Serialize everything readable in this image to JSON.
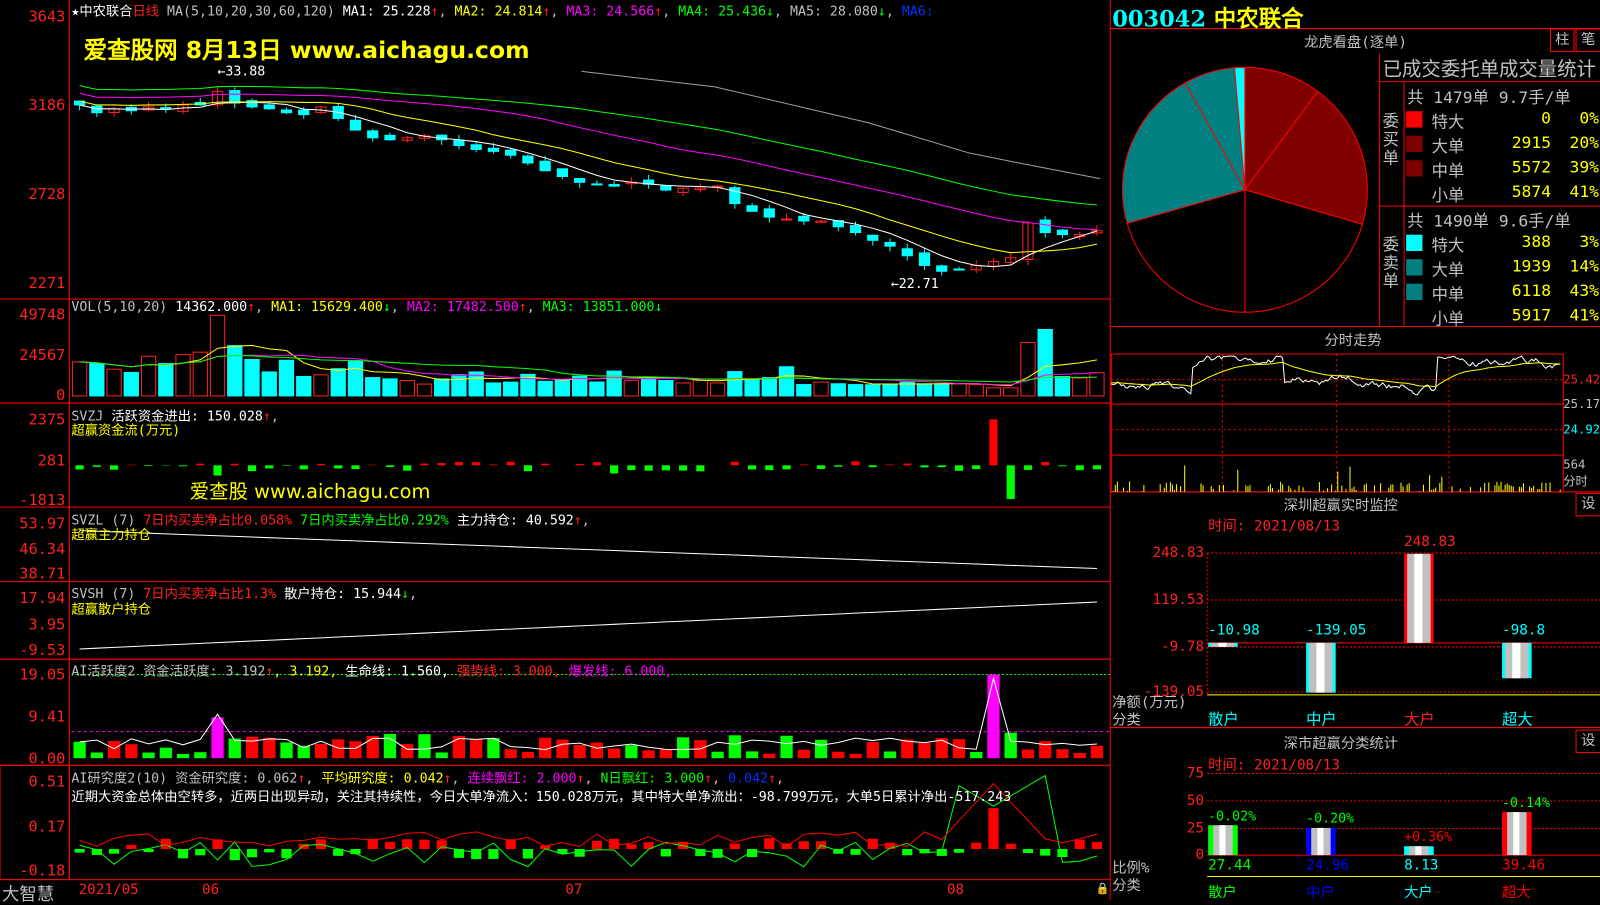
{
  "header": {
    "star": "★",
    "stock_name": "中农联合",
    "period": "日线",
    "ma_label": "MA(5,10,20,30,60,120)",
    "ma1": "MA1: 25.228",
    "ma2": "MA2: 24.814",
    "ma3": "MA3: 24.566",
    "ma4": "MA4: 25.436",
    "ma5": "MA5: 28.080",
    "ma6": "MA6:",
    "up": "↑",
    "down": "↓",
    "comma": ","
  },
  "watermark": {
    "line1": "爱查股网    8月13日    www.aichagu.com",
    "line2": "爱查股 www.aichagu.com"
  },
  "main_chart": {
    "y_ticks": [
      "3643",
      "3186",
      "2728",
      "2271"
    ],
    "high_label": "←33.88",
    "low_label": "←22.71",
    "closes": [
      3190,
      3150,
      3170,
      3160,
      3180,
      3170,
      3190,
      3190,
      3260,
      3200,
      3180,
      3170,
      3150,
      3140,
      3180,
      3120,
      3060,
      3020,
      3010,
      3020,
      3030,
      3010,
      2980,
      2960,
      2950,
      2930,
      2890,
      2850,
      2820,
      2790,
      2780,
      2770,
      2790,
      2780,
      2750,
      2760,
      2760,
      2770,
      2680,
      2640,
      2610,
      2600,
      2590,
      2590,
      2560,
      2530,
      2490,
      2460,
      2410,
      2360,
      2330,
      2340,
      2360,
      2380,
      2400,
      2580,
      2530,
      2520,
      2520,
      2540
    ],
    "colors": {
      "up": "#ff2020",
      "down": "#00ffff",
      "ma1": "#ffffff",
      "ma2": "#ffff00",
      "ma3": "#ff00ff",
      "ma4": "#00ff00",
      "ma5": "#a0a0a0"
    }
  },
  "volume": {
    "title": "VOL(5,10,20)",
    "value": "14362.000",
    "ma1": "MA1: 15629.400",
    "ma2": "MA2: 17482.500",
    "ma3": "MA3: 13851.000",
    "y_ticks": [
      "49748",
      "24567",
      "0"
    ],
    "values": [
      21000,
      20000,
      16500,
      14500,
      24500,
      20000,
      25500,
      27000,
      49748,
      31000,
      22500,
      14800,
      22000,
      12000,
      13000,
      16800,
      21500,
      11300,
      10500,
      9500,
      7300,
      10500,
      13000,
      14800,
      8000,
      8500,
      13300,
      9000,
      10000,
      12200,
      8600,
      15300,
      9600,
      11700,
      9500,
      8000,
      9600,
      8000,
      15000,
      10000,
      11300,
      18000,
      7000,
      8500,
      7500,
      7000,
      6900,
      7000,
      8500,
      7500,
      7500,
      7500,
      7000,
      5000,
      5000,
      33000,
      41000,
      12000,
      11000,
      14362
    ]
  },
  "svzj": {
    "title": "SVZJ",
    "label": "活跃资金进出: 150.028",
    "sub": "超赢资金流(万元)",
    "y_ticks": [
      "2375",
      "281",
      "-1813"
    ]
  },
  "svzl": {
    "title": "SVZL (7)",
    "ratio_red": "7日内买卖净占比0.058%",
    "ratio_green": "7日内买卖净占比0.292%",
    "hold": "主力持仓: 40.592",
    "sub": "超赢主力持仓",
    "y_ticks": [
      "53.97",
      "46.34",
      "38.71"
    ]
  },
  "svsh": {
    "title": "SVSH (7)",
    "ratio_red": "7日内买卖净占比1.3%",
    "hold": "散户持仓: 15.944",
    "sub": "超赢散户持仓",
    "y_ticks": [
      "17.94",
      "3.95",
      "-9.53"
    ]
  },
  "ai_active": {
    "title": "AI活跃度2 资金活跃度: 3.192",
    "v2": ", 3.192,",
    "life": "生命线: 1.560,",
    "strong": "强势线: 3.000,",
    "burst": "爆发线: 6.000,",
    "y_ticks": [
      "19.05",
      "9.41",
      "0.00"
    ]
  },
  "ai_research": {
    "title": "AI研究度2(10) 资金研究度: 0.062",
    "avg": "平均研究度: 0.042",
    "red_cont": "连续飘红: 2.000",
    "n_red": "N日飘红: 3.000",
    "v5": "0.042",
    "comment": "近期大资金总体由空转多，近两日出现异动，关注其持续性，今日大单净流入：150.028万元，其中特大单净流出：-98.799万元，大单5日累计净出-517.243",
    "y_ticks": [
      "0.51",
      "0.17",
      "-0.18"
    ]
  },
  "date_bar": {
    "brand": "大智慧",
    "dates": [
      "2021/05",
      "06",
      "07",
      "08"
    ]
  },
  "right": {
    "code": "003042",
    "name": "中农联合",
    "dragon": {
      "title": "龙虎看盘(逐单)",
      "btn_bar": "柱",
      "btn_pen": "笔",
      "table_title": "已成交委托单成交量统计",
      "buy": {
        "side": "委买单",
        "summary": "共 1479单 9.7手/单",
        "rows": [
          {
            "label": "特大",
            "value": "0",
            "pct": "0%",
            "color": "#ff0000"
          },
          {
            "label": "大单",
            "value": "2915",
            "pct": "20%",
            "color": "#800000"
          },
          {
            "label": "中单",
            "value": "5572",
            "pct": "39%",
            "color": "#800000"
          },
          {
            "label": "小单",
            "value": "5874",
            "pct": "41%",
            "color": "#000000"
          }
        ]
      },
      "sell": {
        "side": "委卖单",
        "summary": "共 1490单 9.6手/单",
        "rows": [
          {
            "label": "特大",
            "value": "388",
            "pct": "3%",
            "color": "#00ffff"
          },
          {
            "label": "大单",
            "value": "1939",
            "pct": "14%",
            "color": "#008080"
          },
          {
            "label": "中单",
            "value": "6118",
            "pct": "43%",
            "color": "#008080"
          },
          {
            "label": "小单",
            "value": "5917",
            "pct": "41%",
            "color": "#000000"
          }
        ]
      }
    },
    "intraday": {
      "title": "分时走势",
      "labels": [
        "25.42",
        "25.17",
        "24.92",
        "564",
        "分时"
      ]
    },
    "sz_monitor": {
      "title": "深圳超赢实时监控",
      "time": "时间: 2021/08/13",
      "y_ticks": [
        "248.83",
        "119.53",
        "-9.78",
        "-139.05"
      ],
      "ylabel": "净额(万元)",
      "xlabel": "分类",
      "bars": [
        {
          "cat": "散户",
          "value": -10.98,
          "label": "-10.98",
          "color": "#00ffff"
        },
        {
          "cat": "中户",
          "value": -139.05,
          "label": "-139.05",
          "color": "#00ffff"
        },
        {
          "cat": "大户",
          "value": 248.83,
          "label": "248.83",
          "color": "#ff0000"
        },
        {
          "cat": "超大",
          "value": -98.8,
          "label": "-98.8",
          "color": "#00ffff"
        }
      ]
    },
    "sz_stats": {
      "title": "深市超赢分类统计",
      "time": "时间: 2021/08/13",
      "y_ticks": [
        "75",
        "50",
        "25",
        "0"
      ],
      "ylabel": "比例%",
      "xlabel": "分类",
      "bars": [
        {
          "cat": "散户",
          "value": 27.44,
          "label": "27.44",
          "change": "-0.02%",
          "color": "#00ff00",
          "change_color": "#00ff00"
        },
        {
          "cat": "中户",
          "value": 24.96,
          "label": "24.96",
          "change": "-0.20%",
          "color": "#0000ff",
          "change_color": "#00ff00"
        },
        {
          "cat": "大户",
          "value": 8.13,
          "label": "8.13",
          "change": "+0.36%",
          "color": "#00ffff",
          "change_color": "#ff0000"
        },
        {
          "cat": "超大",
          "value": 39.46,
          "label": "39.46",
          "change": "-0.14%",
          "color": "#ff0000",
          "change_color": "#00ff00"
        }
      ]
    }
  }
}
